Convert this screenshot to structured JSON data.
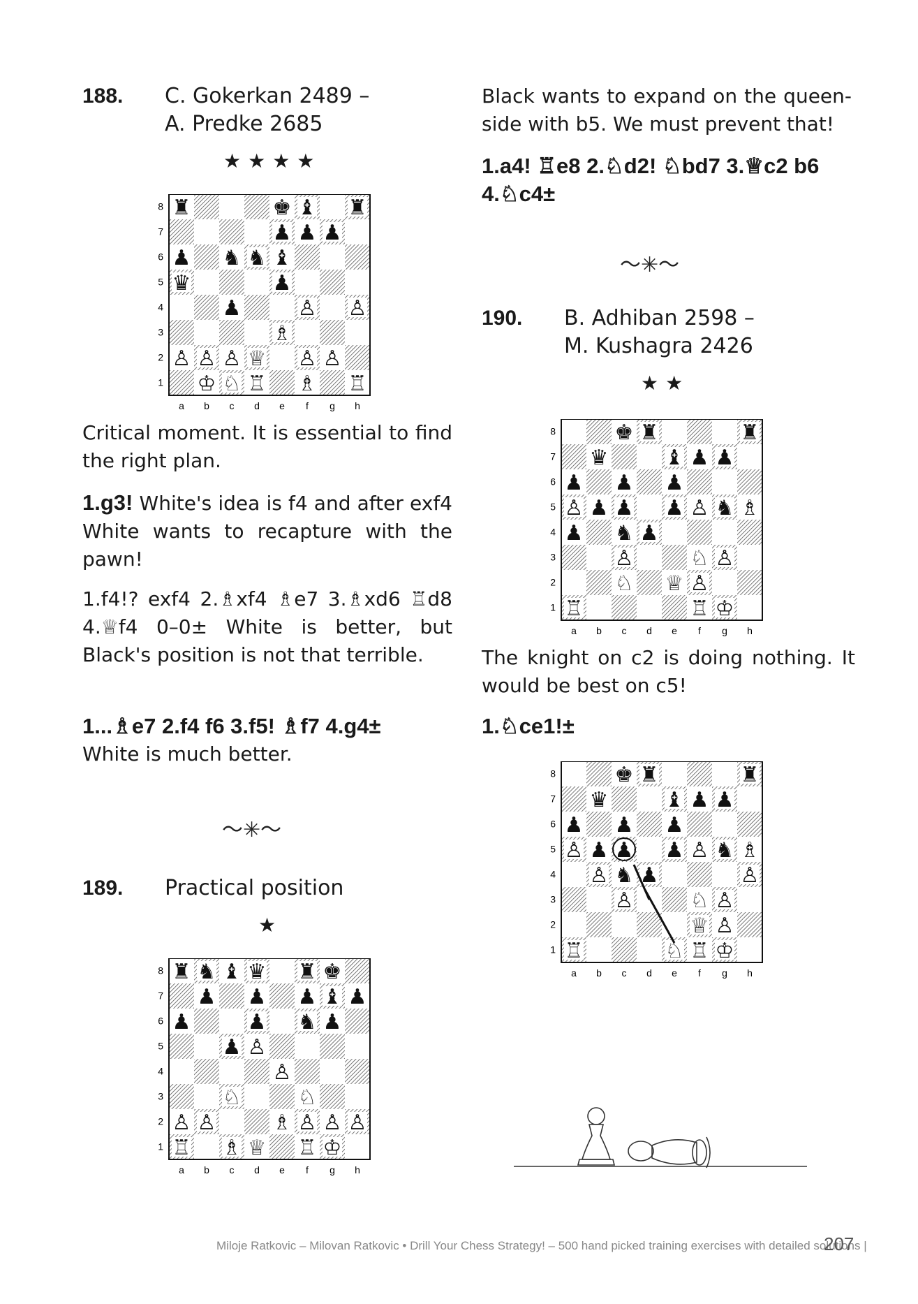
{
  "puzzles": {
    "p188": {
      "number": "188.",
      "title_line1": "C. Gokerkan 2489 –",
      "title_line2": "A. Predke 2685",
      "stars": "★★★★",
      "para1": "Critical moment. It is essential to find the right plan.",
      "line1_bold": "1.g3!",
      "line1_text": " White's idea is f4 and after exf4 White wants to recapture with the pawn!",
      "line2": "1.f4!? exf4 2.♗xf4 ♗e7 3.♗xd6 ♖d8 4.♕f4 0–0± White is better, but Black's position is not that terrible.",
      "line3_bold": "1...♗e7 2.f4 f6 3.f5! ♗f7 4.g4±",
      "line3_text": "White is much better."
    },
    "p189": {
      "number": "189.",
      "title": "Practical position",
      "stars": "★"
    },
    "p189_solution": {
      "para1": "Black wants to expand on the queen-side with b5. We must prevent that!",
      "moves": "1.a4! ♖e8 2.♘d2! ♘bd7 3.♕c2 b6 4.♘c4±"
    },
    "p190": {
      "number": "190.",
      "title_line1": "B. Adhiban 2598 –",
      "title_line2": "M. Kushagra 2426",
      "stars": "★★",
      "para1": "The knight on c2 is doing nothing. It would be best on c5!",
      "moves": "1.♘ce1!±"
    },
    "separator": "〜✳〜"
  },
  "boards": {
    "files": [
      "a",
      "b",
      "c",
      "d",
      "e",
      "f",
      "g",
      "h"
    ],
    "ranks": [
      "8",
      "7",
      "6",
      "5",
      "4",
      "3",
      "2",
      "1"
    ],
    "b188": [
      "r...kb.r",
      "....ppp.",
      "p.nnb...",
      "q...p...",
      "..p..P.P",
      "....B...",
      "PPPQ.PP.",
      ".KNR.B.R"
    ],
    "b189": [
      "rnbq.rk.",
      ".p.p.pbp",
      "p..p.np.",
      "..pP....",
      "....P...",
      "..N..N..",
      "PP..BPPP",
      "R.BQ.RK."
    ],
    "b190": [
      "..kr...r",
      ".q..bpp.",
      "p.p.p...",
      "Ppp.pPnB",
      "p.np....",
      "..P..NP.",
      "..N.QP..",
      "R....RK."
    ],
    "b190b": [
      "..kr...r",
      ".q..bpp.",
      "p.p.p...",
      "Ppp.pPnBp",
      ".Pnp...P",
      "..P..NP.",
      ".....QP..",
      "R...NRK."
    ]
  },
  "footer": {
    "text": "Miloje Ratkovic – Milovan Ratkovic • Drill Your Chess Strategy! – 500 hand picked training exercises with detailed solutions |",
    "page": "207"
  }
}
